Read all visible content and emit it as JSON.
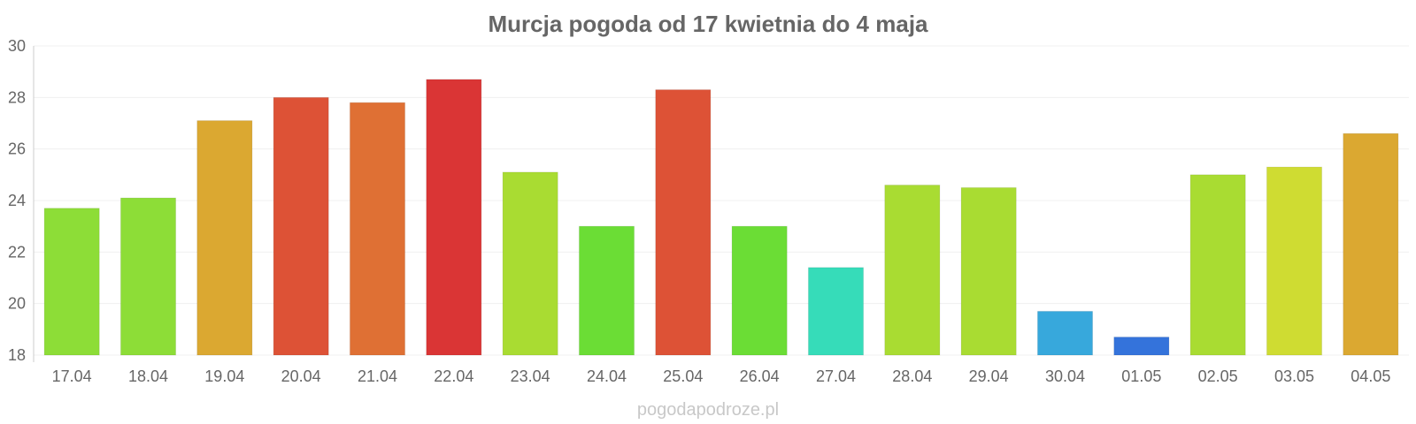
{
  "chart_data": {
    "type": "bar",
    "title": "Murcja pogoda od 17 kwietnia do 4 maja",
    "xlabel": "",
    "ylabel": "",
    "ylim": [
      18,
      30
    ],
    "yticks": [
      "18",
      "20",
      "22",
      "24",
      "26",
      "28",
      "30"
    ],
    "grid": true,
    "legend": "none",
    "categories": [
      "17.04",
      "18.04",
      "19.04",
      "20.04",
      "21.04",
      "22.04",
      "23.04",
      "24.04",
      "25.04",
      "26.04",
      "27.04",
      "28.04",
      "29.04",
      "30.04",
      "01.05",
      "02.05",
      "03.05",
      "04.05"
    ],
    "values": [
      23.7,
      24.1,
      27.1,
      28.0,
      27.8,
      28.7,
      25.1,
      23.0,
      28.3,
      23.0,
      21.4,
      24.6,
      24.5,
      19.7,
      18.7,
      25.0,
      25.3,
      26.6
    ],
    "colors": [
      "#8ddd37",
      "#8ddd37",
      "#dba831",
      "#dd5236",
      "#df7034",
      "#da3535",
      "#a9dc32",
      "#6bdd35",
      "#dd5236",
      "#6bdd35",
      "#36dcb9",
      "#a9dc32",
      "#a9dc32",
      "#37a8dc",
      "#3473db",
      "#a9dc32",
      "#cfdc32",
      "#dba831"
    ]
  },
  "watermark": "pogodapodroze.pl"
}
